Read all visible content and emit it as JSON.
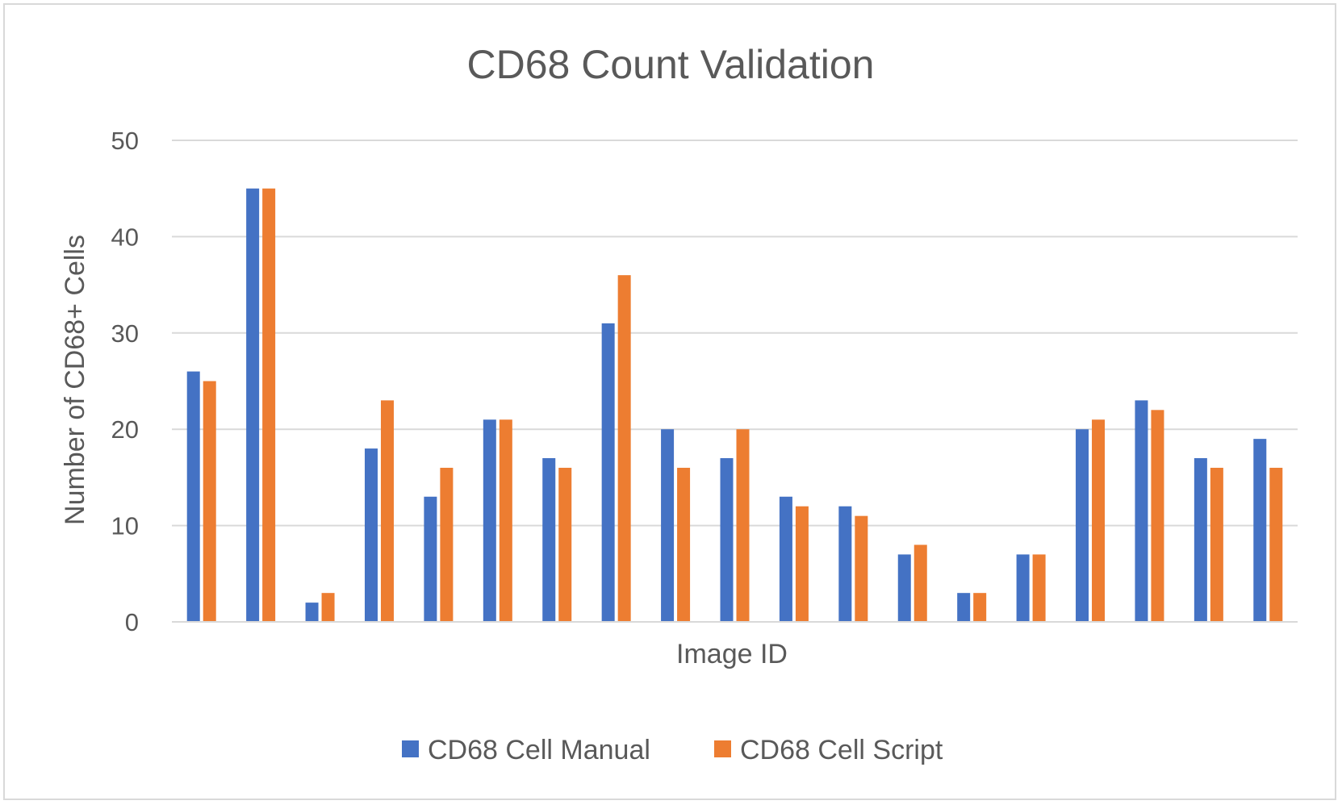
{
  "chart_data": {
    "type": "bar",
    "title": "CD68 Count Validation",
    "xlabel": "Image ID",
    "ylabel": "Number of CD68+ Cells",
    "ylim": [
      0,
      50
    ],
    "yticks": [
      0,
      10,
      20,
      30,
      40,
      50
    ],
    "grid": true,
    "legend_position": "bottom",
    "categories": [
      "",
      "",
      "",
      "",
      "",
      "",
      "",
      "",
      "",
      "",
      "",
      "",
      "",
      "",
      "",
      "",
      "",
      "",
      ""
    ],
    "series": [
      {
        "name": "CD68 Cell Manual",
        "color": "#4472c4",
        "values": [
          26,
          45,
          2,
          18,
          13,
          21,
          17,
          31,
          20,
          17,
          13,
          12,
          7,
          3,
          7,
          20,
          23,
          17,
          19
        ]
      },
      {
        "name": "CD68 Cell Script",
        "color": "#ed7d31",
        "values": [
          25,
          45,
          3,
          23,
          16,
          21,
          16,
          36,
          16,
          20,
          12,
          11,
          8,
          3,
          7,
          21,
          22,
          16,
          16
        ]
      }
    ]
  }
}
